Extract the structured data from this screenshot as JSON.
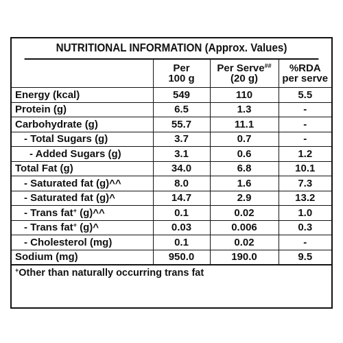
{
  "title": "NUTRITIONAL INFORMATION (Approx. Values)",
  "headers": {
    "per100_line1": "Per",
    "per100_line2": "100 g",
    "serve_line1": "Per Serve",
    "serve_sup": "##",
    "serve_line2": "(20 g)",
    "rda_line1": "%RDA",
    "rda_line2": "per serve"
  },
  "rows": [
    {
      "label": "Energy (kcal)",
      "per100": "549",
      "serve": "110",
      "rda": "5.5"
    },
    {
      "label": "Protein (g)",
      "per100": "6.5",
      "serve": "1.3",
      "rda": "-"
    },
    {
      "label": "Carbohydrate (g)",
      "per100": "55.7",
      "serve": "11.1",
      "rda": "-"
    },
    {
      "label": "- Total Sugars (g)",
      "per100": "3.7",
      "serve": "0.7",
      "rda": "-"
    },
    {
      "label": "- Added Sugars (g)",
      "per100": "3.1",
      "serve": "0.6",
      "rda": "1.2"
    },
    {
      "label": "Total Fat (g)",
      "per100": "34.0",
      "serve": "6.8",
      "rda": "10.1"
    },
    {
      "label": "- Saturated fat (g)^^",
      "per100": "8.0",
      "serve": "1.6",
      "rda": "7.3"
    },
    {
      "label": "- Saturated fat (g)^",
      "per100": "14.7",
      "serve": "2.9",
      "rda": "13.2"
    },
    {
      "label_pre": "- Trans fat",
      "label_sup": "+",
      "label_post": " (g)^^",
      "per100": "0.1",
      "serve": "0.02",
      "rda": "1.0"
    },
    {
      "label_pre": "- Trans fat",
      "label_sup": "+",
      "label_post": " (g)^",
      "per100": "0.03",
      "serve": "0.006",
      "rda": "0.3"
    },
    {
      "label": "- Cholesterol (mg)",
      "per100": "0.1",
      "serve": "0.02",
      "rda": "-"
    },
    {
      "label": "Sodium (mg)",
      "per100": "950.0",
      "serve": "190.0",
      "rda": "9.5"
    }
  ],
  "footnote": {
    "sup": "+",
    "text": "Other than naturally occurring trans fat"
  }
}
